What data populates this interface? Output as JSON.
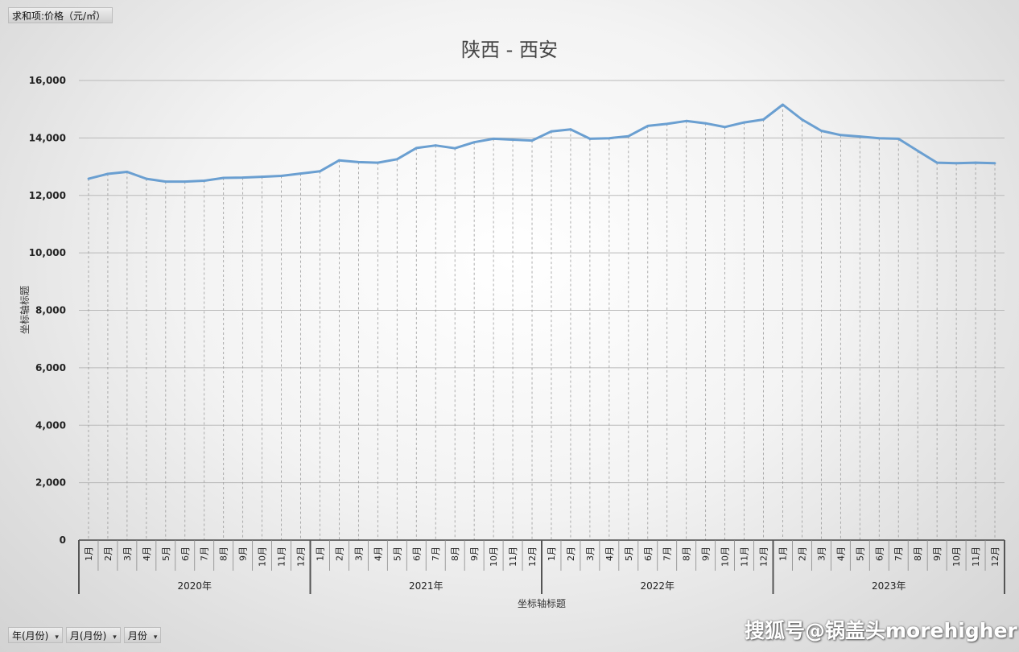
{
  "pivot": {
    "value_field": "求和项:价格（元/㎡）",
    "row_fields": [
      "年(月份)",
      "月(月份)",
      "月份"
    ]
  },
  "watermark": "搜狐号@锅盖头morehigher",
  "chart_data": {
    "type": "line",
    "title": "陕西 - 西安",
    "xlabel": "坐标轴标题",
    "ylabel": "坐标轴标题",
    "ylim": [
      0,
      16000
    ],
    "yticks": [
      "0",
      "2,000",
      "4,000",
      "6,000",
      "8,000",
      "10,000",
      "12,000",
      "14,000",
      "16,000"
    ],
    "grid": true,
    "groups": [
      "2020年",
      "2021年",
      "2022年",
      "2023年"
    ],
    "months": [
      "1月",
      "2月",
      "3月",
      "4月",
      "5月",
      "6月",
      "7月",
      "8月",
      "9月",
      "10月",
      "11月",
      "12月"
    ],
    "series": [
      {
        "values": [
          12580,
          12750,
          12820,
          12580,
          12480,
          12480,
          12510,
          12610,
          12620,
          12650,
          12680,
          12760,
          12840,
          13220,
          13160,
          13140,
          13260,
          13650,
          13740,
          13640,
          13850,
          13970,
          13940,
          13910,
          14230,
          14300,
          13970,
          13990,
          14060,
          14420,
          14490,
          14590,
          14510,
          14380,
          14540,
          14640,
          15160,
          14640,
          14250,
          14100,
          14050,
          13990,
          13970,
          13550,
          13140,
          13120,
          13140,
          13120
        ]
      }
    ],
    "line_color": "#6a9fd1"
  }
}
